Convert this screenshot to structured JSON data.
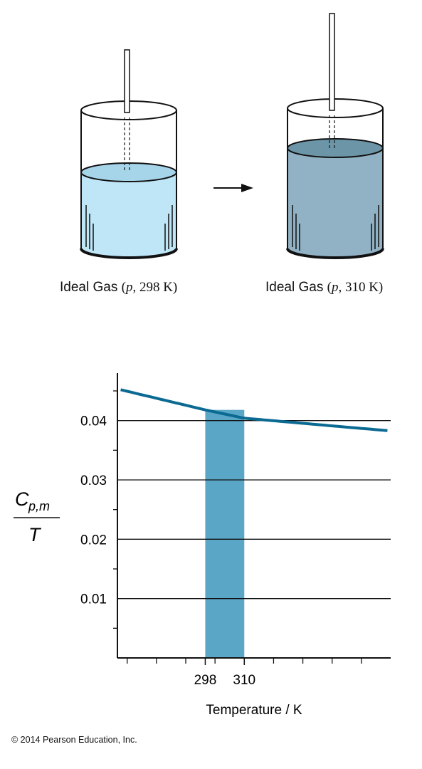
{
  "colors": {
    "liquid_before": "#bfe6f7",
    "liquid_before_top": "#a6d5ea",
    "liquid_after": "#91b2c4",
    "liquid_after_top": "#6c95a8",
    "curve": "#0b6a92",
    "shade": "#5aa6c6"
  },
  "containers": {
    "left": {
      "gas": "Ideal Gas",
      "p": "p",
      "temp": "298 K"
    },
    "right": {
      "gas": "Ideal Gas",
      "p": "p",
      "temp": "310 K"
    }
  },
  "chart_data": {
    "type": "line",
    "ylabel_num_main": "C",
    "ylabel_num_sub": "p,m",
    "ylabel_den": "T",
    "xlabel": "Temperature / K",
    "ylim": [
      0,
      0.048
    ],
    "xlim": [
      271,
      355
    ],
    "yticks": [
      "0.01",
      "0.02",
      "0.03",
      "0.04"
    ],
    "ytick_values": [
      0.01,
      0.02,
      0.03,
      0.04
    ],
    "xticks": [
      "298",
      "310"
    ],
    "xtick_values": [
      298,
      310
    ],
    "grid": "horizontal",
    "series": [
      {
        "x": [
          272,
          298,
          310,
          354
        ],
        "values": [
          0.0452,
          0.0418,
          0.0404,
          0.0383
        ]
      }
    ],
    "shaded_region": [
      298,
      310
    ]
  },
  "copyright": "© 2014 Pearson Education, Inc."
}
